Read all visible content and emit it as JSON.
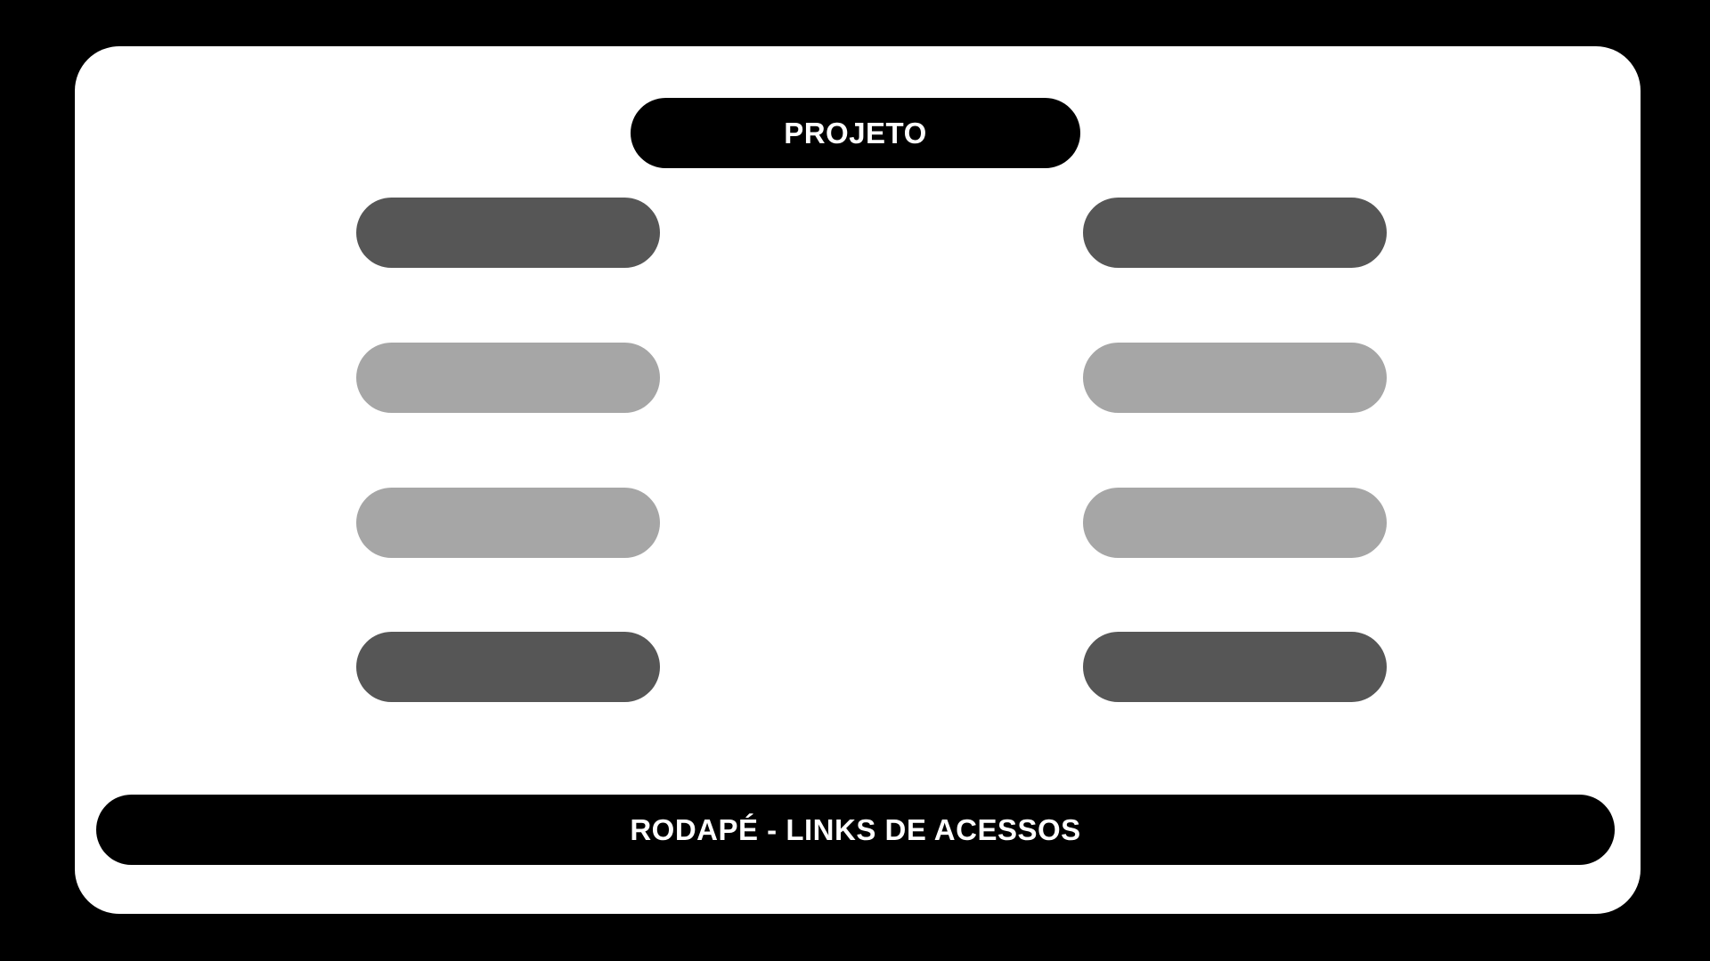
{
  "header": {
    "title": "PROJETO"
  },
  "nav": {
    "left": [
      {
        "shade": "dark"
      },
      {
        "shade": "light"
      },
      {
        "shade": "light"
      },
      {
        "shade": "dark"
      }
    ],
    "right": [
      {
        "shade": "dark"
      },
      {
        "shade": "light"
      },
      {
        "shade": "light"
      },
      {
        "shade": "dark"
      }
    ]
  },
  "footer": {
    "label": "RODAPÉ - LINKS DE ACESSOS"
  },
  "colors": {
    "background": "#000000",
    "panel": "#ffffff",
    "title_fill": "#000000",
    "dark_pill": "#565656",
    "light_pill": "#a6a6a6"
  }
}
